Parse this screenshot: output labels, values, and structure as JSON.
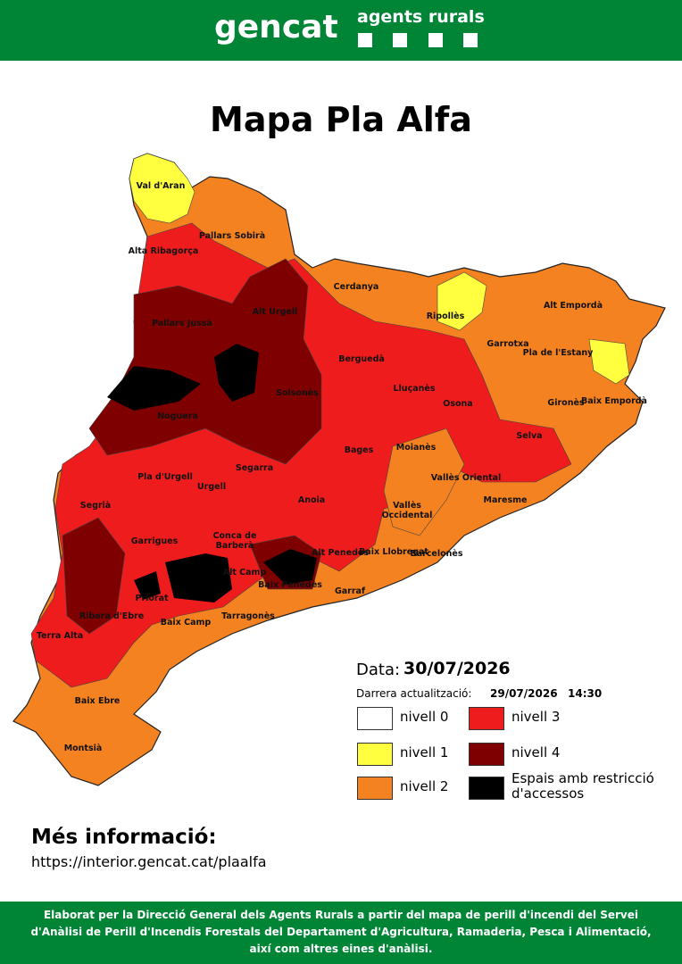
{
  "header": {
    "logo": "gencat",
    "brand": "agents rurals"
  },
  "title": "Mapa Pla Alfa",
  "map": {
    "regions": [
      "Val d'Aran",
      "Pallars Sobirà",
      "Alta Ribagorça",
      "Cerdanya",
      "Alt Urgell",
      "Pallars Jussà",
      "Ripollès",
      "Alt Empordà",
      "Garrotxa",
      "Berguedà",
      "Pla de l'Estany",
      "Solsonès",
      "Lluçanès",
      "Osona",
      "Gironès",
      "Baix Empordà",
      "Noguera",
      "Selva",
      "Bages",
      "Moianès",
      "Segarra",
      "Pla d'Urgell",
      "Urgell",
      "Vallès Oriental",
      "Segrià",
      "Anoia",
      "Maresme",
      "Vallès Occidental",
      "Garrigues",
      "Conca de Barberà",
      "Alt Penedès",
      "Baix Llobregat",
      "Barcelonès",
      "Alt Camp",
      "Priorat",
      "Baix Penedès",
      "Garraf",
      "Ribera d'Ebre",
      "Tarragonès",
      "Baix Camp",
      "Terra Alta",
      "Baix Ebre",
      "Montsià"
    ]
  },
  "legend": {
    "date_label": "Data:",
    "date": "30/07/2026",
    "update_label": "Darrera actualització:",
    "update_date": "29/07/2026",
    "update_time": "14:30",
    "levels": [
      {
        "label": "nivell 0",
        "color": "#ffffff"
      },
      {
        "label": "nivell 1",
        "color": "#ffff40"
      },
      {
        "label": "nivell 2",
        "color": "#f58220"
      },
      {
        "label": "nivell 3",
        "color": "#ee1c1c"
      },
      {
        "label": "nivell 4",
        "color": "#7f0000"
      },
      {
        "label": "Espais amb restricció d'accessos",
        "color": "#000000"
      }
    ]
  },
  "more_info": {
    "heading": "Més informació:",
    "url": "https://interior.gencat.cat/plaalfa"
  },
  "footer": "Elaborat per la Direcció General dels Agents Rurals a partir del mapa de perill d'incendi del Servei d'Anàlisi de Perill d'Incendis Forestals del Departament d'Agricultura, Ramaderia, Pesca i Alimentació, així com altres eines d'anàlisi."
}
